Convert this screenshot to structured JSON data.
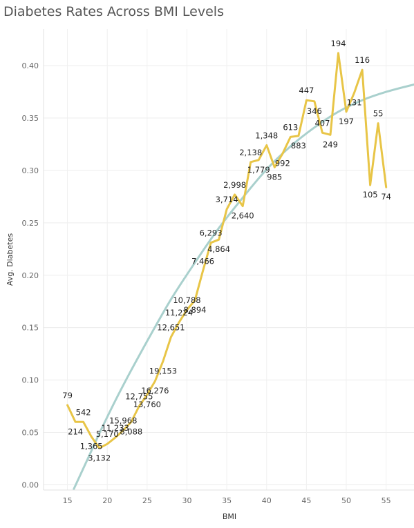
{
  "chart_data": {
    "type": "line",
    "title": "Diabetes Rates Across BMI Levels",
    "xlabel": "BMI",
    "ylabel": "Avg. Diabetes",
    "xlim": [
      12,
      58.5
    ],
    "ylim": [
      -0.005,
      0.435
    ],
    "x_ticks": [
      15,
      20,
      25,
      30,
      35,
      40,
      45,
      50,
      55
    ],
    "x_tick_labels": [
      "15",
      "20",
      "25",
      "30",
      "35",
      "40",
      "45",
      "50",
      "55"
    ],
    "y_ticks": [
      0,
      0.05,
      0.1,
      0.15,
      0.2,
      0.25,
      0.3,
      0.35,
      0.4
    ],
    "y_tick_labels": [
      "0.00",
      "0.05",
      "0.10",
      "0.15",
      "0.20",
      "0.25",
      "0.30",
      "0.35",
      "0.40"
    ],
    "grid": true,
    "line_color": "#e8c547",
    "trend_color": "#a9d0cd",
    "series": [
      {
        "x": [
          15,
          16,
          17,
          18,
          19,
          20,
          21,
          22,
          23,
          24,
          25,
          26,
          27,
          28,
          29,
          30,
          31,
          32,
          33,
          34,
          35,
          36,
          37,
          38,
          39,
          40,
          41,
          42,
          43,
          44,
          45,
          46,
          47,
          48,
          49,
          50,
          51,
          52,
          53,
          54,
          55
        ],
        "values": [
          0.076,
          0.06,
          0.06,
          0.046,
          0.035,
          0.039,
          0.045,
          0.052,
          0.06,
          0.075,
          0.086,
          0.099,
          0.118,
          0.141,
          0.155,
          0.167,
          0.176,
          0.204,
          0.231,
          0.234,
          0.263,
          0.277,
          0.266,
          0.308,
          0.31,
          0.324,
          0.303,
          0.316,
          0.332,
          0.333,
          0.367,
          0.366,
          0.336,
          0.334,
          0.412,
          0.356,
          0.374,
          0.396,
          0.286,
          0.345,
          0.284
        ]
      }
    ],
    "data_labels": [
      "79",
      "214",
      "542",
      "1,365",
      "3,132",
      "5,170",
      "11,233",
      "15,968",
      "8,088",
      "12,755",
      "13,760",
      "16,276",
      "19,153",
      "12,651",
      "11,224",
      "10,788",
      "8,894",
      "7,466",
      "6,293",
      "4,864",
      "3,714",
      "2,998",
      "2,640",
      "2,138",
      "1,779",
      "1,348",
      "985",
      "992",
      "613",
      "883",
      "447",
      "346",
      "407",
      "249",
      "194",
      "197",
      "131",
      "116",
      "105",
      "55",
      "74"
    ],
    "data_label_sides": [
      "above",
      "below",
      "above",
      "below",
      "below",
      "above",
      "above",
      "above",
      "below",
      "above",
      "below",
      "below",
      "below",
      "above",
      "above",
      "above",
      "below",
      "above",
      "above",
      "below",
      "above",
      "above",
      "below",
      "above",
      "below",
      "above",
      "below",
      "below",
      "above",
      "below",
      "above",
      "below",
      "above",
      "below",
      "above",
      "below",
      "below",
      "above",
      "below",
      "above",
      "below"
    ],
    "trend": {
      "x": [
        15.8,
        17.5,
        19.5,
        22,
        25,
        28,
        31,
        34,
        37,
        40,
        43,
        46,
        49,
        52,
        55,
        58.5
      ],
      "values": [
        -0.004,
        0.024,
        0.057,
        0.095,
        0.137,
        0.177,
        0.212,
        0.245,
        0.274,
        0.301,
        0.323,
        0.341,
        0.356,
        0.367,
        0.375,
        0.382
      ]
    }
  }
}
